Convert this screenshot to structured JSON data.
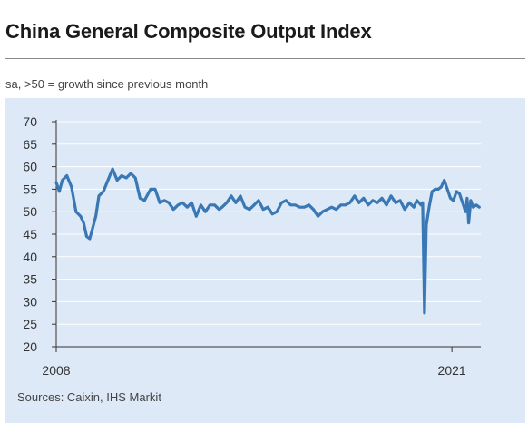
{
  "header": {
    "title": "China General Composite Output Index",
    "subtitle": "sa, >50 = growth since previous month"
  },
  "footer": {
    "source": "Sources: Caixin, IHS Markit"
  },
  "colors": {
    "line": "#3a78b5",
    "grid": "#ffffff",
    "panel": "#dde9f6",
    "axis": "#333333"
  },
  "chart_data": {
    "type": "line",
    "title": "China General Composite Output Index",
    "subtitle": "sa, >50 = growth since previous month",
    "ylim": [
      20,
      70
    ],
    "yticks": [
      20,
      25,
      30,
      35,
      40,
      45,
      50,
      55,
      60,
      65,
      70
    ],
    "xlim": [
      2008.0,
      2021.95
    ],
    "xtick_labels": [
      {
        "value": 2008,
        "label": "2008"
      },
      {
        "value": 2021,
        "label": "2021"
      }
    ],
    "grid": "horizontal",
    "series": [
      {
        "x": [
          2008.0,
          2008.1,
          2008.2,
          2008.35,
          2008.5,
          2008.65,
          2008.8,
          2008.9,
          2009.0,
          2009.1,
          2009.2,
          2009.3,
          2009.4,
          2009.55,
          2009.7,
          2009.85,
          2010.0,
          2010.15,
          2010.3,
          2010.45,
          2010.6,
          2010.75,
          2010.9,
          2011.1,
          2011.25,
          2011.4,
          2011.55,
          2011.7,
          2011.85,
          2012.0,
          2012.15,
          2012.3,
          2012.45,
          2012.6,
          2012.75,
          2012.9,
          2013.05,
          2013.2,
          2013.35,
          2013.45,
          2013.6,
          2013.75,
          2013.9,
          2014.05,
          2014.2,
          2014.35,
          2014.5,
          2014.65,
          2014.8,
          2014.95,
          2015.1,
          2015.25,
          2015.4,
          2015.55,
          2015.7,
          2015.85,
          2016.0,
          2016.15,
          2016.3,
          2016.45,
          2016.6,
          2016.75,
          2016.9,
          2017.05,
          2017.2,
          2017.35,
          2017.5,
          2017.65,
          2017.8,
          2017.95,
          2018.1,
          2018.25,
          2018.4,
          2018.55,
          2018.7,
          2018.85,
          2019.0,
          2019.15,
          2019.3,
          2019.45,
          2019.6,
          2019.75,
          2019.85,
          2019.92,
          2019.98,
          2020.04,
          2020.1,
          2020.16,
          2020.25,
          2020.35,
          2020.45,
          2020.55,
          2020.65,
          2020.75,
          2020.85,
          2020.95,
          2021.05,
          2021.15,
          2021.25,
          2021.35,
          2021.45,
          2021.5,
          2021.55,
          2021.62,
          2021.7,
          2021.8,
          2021.9
        ],
        "y": [
          56.5,
          54.5,
          57.0,
          58.0,
          55.5,
          50.0,
          49.0,
          47.5,
          44.5,
          44.0,
          46.5,
          49.0,
          53.5,
          54.5,
          57.0,
          59.5,
          57.0,
          58.0,
          57.5,
          58.5,
          57.5,
          53.0,
          52.5,
          55.0,
          55.0,
          52.0,
          52.5,
          52.0,
          50.5,
          51.5,
          52.0,
          51.0,
          52.0,
          49.0,
          51.5,
          50.0,
          51.5,
          51.5,
          50.5,
          51.0,
          52.0,
          53.5,
          52.0,
          53.5,
          51.0,
          50.5,
          51.5,
          52.5,
          50.5,
          51.0,
          49.5,
          50.0,
          52.0,
          52.5,
          51.5,
          51.5,
          51.0,
          51.0,
          51.5,
          50.5,
          49.0,
          50.0,
          50.5,
          51.0,
          50.5,
          51.5,
          51.5,
          52.0,
          53.5,
          52.0,
          53.0,
          51.5,
          52.5,
          52.0,
          53.0,
          51.5,
          53.5,
          52.0,
          52.5,
          50.5,
          52.0,
          51.0,
          52.5,
          52.0,
          51.5,
          52.0,
          27.5,
          47.0,
          51.0,
          54.5,
          55.0,
          55.0,
          55.5,
          57.0,
          55.0,
          53.0,
          52.5,
          54.5,
          54.0,
          52.0,
          50.0,
          53.0,
          47.5,
          52.5,
          51.0,
          51.5,
          51.0
        ]
      }
    ]
  }
}
